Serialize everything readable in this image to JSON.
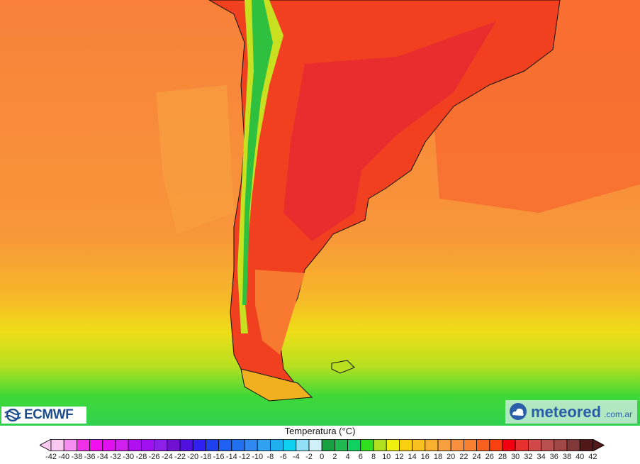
{
  "legend": {
    "title": "Temperatura (°C)",
    "min": -42,
    "max": 42,
    "step": 2,
    "ticks": [
      "-42",
      "-40",
      "-38",
      "-36",
      "-34",
      "-32",
      "-30",
      "-28",
      "-26",
      "-24",
      "-22",
      "-20",
      "-18",
      "-16",
      "-14",
      "-12",
      "-10",
      "-8",
      "-6",
      "-4",
      "-2",
      "0",
      "2",
      "4",
      "6",
      "8",
      "10",
      "12",
      "14",
      "16",
      "18",
      "20",
      "22",
      "24",
      "26",
      "28",
      "30",
      "32",
      "34",
      "36",
      "38",
      "40",
      "42"
    ],
    "colors": [
      "#f9c8f0",
      "#f58ef0",
      "#f030e8",
      "#f010f0",
      "#e010f0",
      "#d020f0",
      "#b010f0",
      "#a010f0",
      "#8c20e8",
      "#7010d0",
      "#5010e0",
      "#3020f0",
      "#2040f0",
      "#2060f0",
      "#2070f0",
      "#3088f0",
      "#30a0f0",
      "#20b0f0",
      "#10d0f0",
      "#90e0f8",
      "#d0f0f8",
      "#18a040",
      "#20b850",
      "#10d060",
      "#30e020",
      "#b0e020",
      "#f0f010",
      "#f8d010",
      "#f8c020",
      "#f8b030",
      "#f8a040",
      "#f89040",
      "#f88030",
      "#f86020",
      "#f84010",
      "#f00010",
      "#e83030",
      "#d04848",
      "#b85050",
      "#a04848",
      "#803838",
      "#501818"
    ]
  },
  "logos": {
    "left": "ECMWF",
    "right_name": "meteored",
    "right_domain": ".com.ar"
  },
  "map": {
    "variable": "temperature",
    "region": "southern South America"
  }
}
